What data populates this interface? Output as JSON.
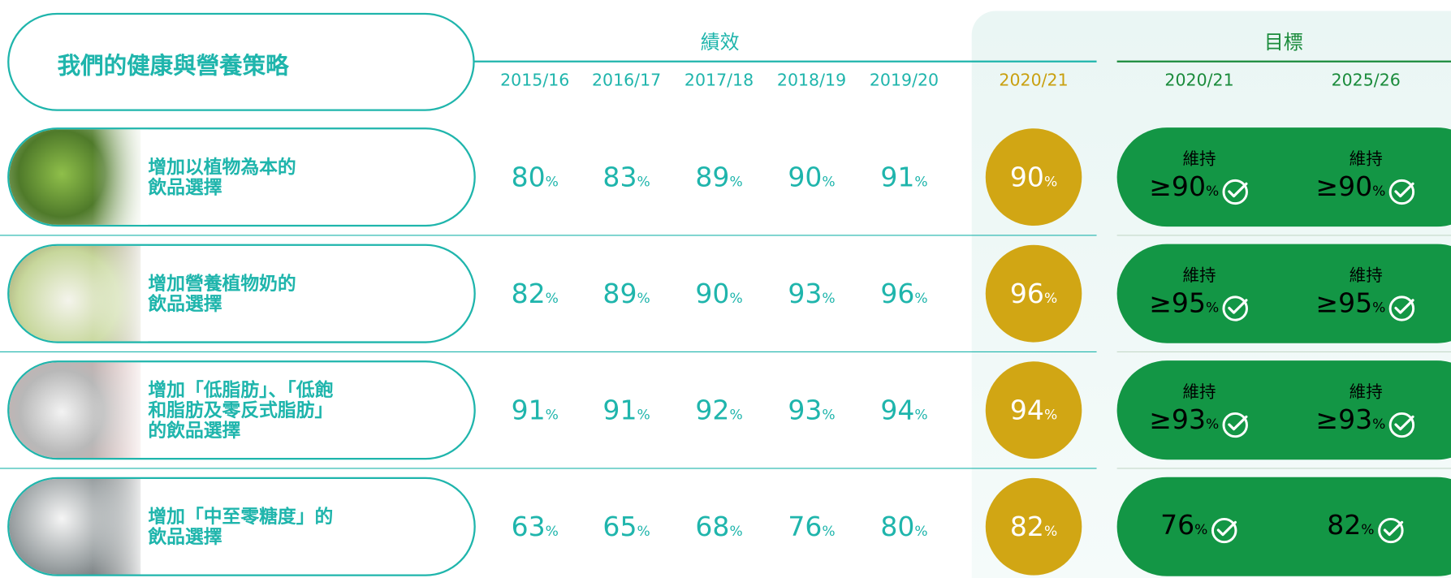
{
  "header": {
    "title": "我們的健康與營養策略",
    "performance_label": "績效",
    "target_label": "目標",
    "performance_years": [
      "2015/16",
      "2016/17",
      "2017/18",
      "2018/19",
      "2019/20"
    ],
    "current_year": "2020/21",
    "target_years": [
      "2020/21",
      "2025/26"
    ]
  },
  "rows": [
    {
      "label": [
        "增加以植物為本的",
        "飲品選擇"
      ],
      "performance": [
        {
          "value": "80",
          "unit": "%"
        },
        {
          "value": "83",
          "unit": "%"
        },
        {
          "value": "89",
          "unit": "%"
        },
        {
          "value": "90",
          "unit": "%"
        },
        {
          "value": "91",
          "unit": "%"
        }
      ],
      "current": {
        "value": "90",
        "unit": "%"
      },
      "targets": [
        {
          "prefix": "維持",
          "value": "≥90",
          "unit": "%"
        },
        {
          "prefix": "維持",
          "value": "≥90",
          "unit": "%"
        }
      ]
    },
    {
      "label": [
        "增加營養植物奶的",
        "飲品選擇"
      ],
      "performance": [
        {
          "value": "82",
          "unit": "%"
        },
        {
          "value": "89",
          "unit": "%"
        },
        {
          "value": "90",
          "unit": "%"
        },
        {
          "value": "93",
          "unit": "%"
        },
        {
          "value": "96",
          "unit": "%"
        }
      ],
      "current": {
        "value": "96",
        "unit": "%"
      },
      "targets": [
        {
          "prefix": "維持",
          "value": "≥95",
          "unit": "%"
        },
        {
          "prefix": "維持",
          "value": "≥95",
          "unit": "%"
        }
      ]
    },
    {
      "label": [
        "增加「低脂肪」、「低飽",
        "和脂肪及零反式脂肪」",
        "的飲品選擇"
      ],
      "performance": [
        {
          "value": "91",
          "unit": "%"
        },
        {
          "value": "91",
          "unit": "%"
        },
        {
          "value": "92",
          "unit": "%"
        },
        {
          "value": "93",
          "unit": "%"
        },
        {
          "value": "94",
          "unit": "%"
        }
      ],
      "current": {
        "value": "94",
        "unit": "%"
      },
      "targets": [
        {
          "prefix": "維持",
          "value": "≥93",
          "unit": "%"
        },
        {
          "prefix": "維持",
          "value": "≥93",
          "unit": "%"
        }
      ]
    },
    {
      "label": [
        "增加「中至零糖度」的",
        "飲品選擇"
      ],
      "performance": [
        {
          "value": "63",
          "unit": "%"
        },
        {
          "value": "65",
          "unit": "%"
        },
        {
          "value": "68",
          "unit": "%"
        },
        {
          "value": "76",
          "unit": "%"
        },
        {
          "value": "80",
          "unit": "%"
        }
      ],
      "current": {
        "value": "82",
        "unit": "%"
      },
      "targets": [
        {
          "value": "76",
          "unit": "%"
        },
        {
          "value": "82",
          "unit": "%"
        }
      ]
    }
  ]
}
